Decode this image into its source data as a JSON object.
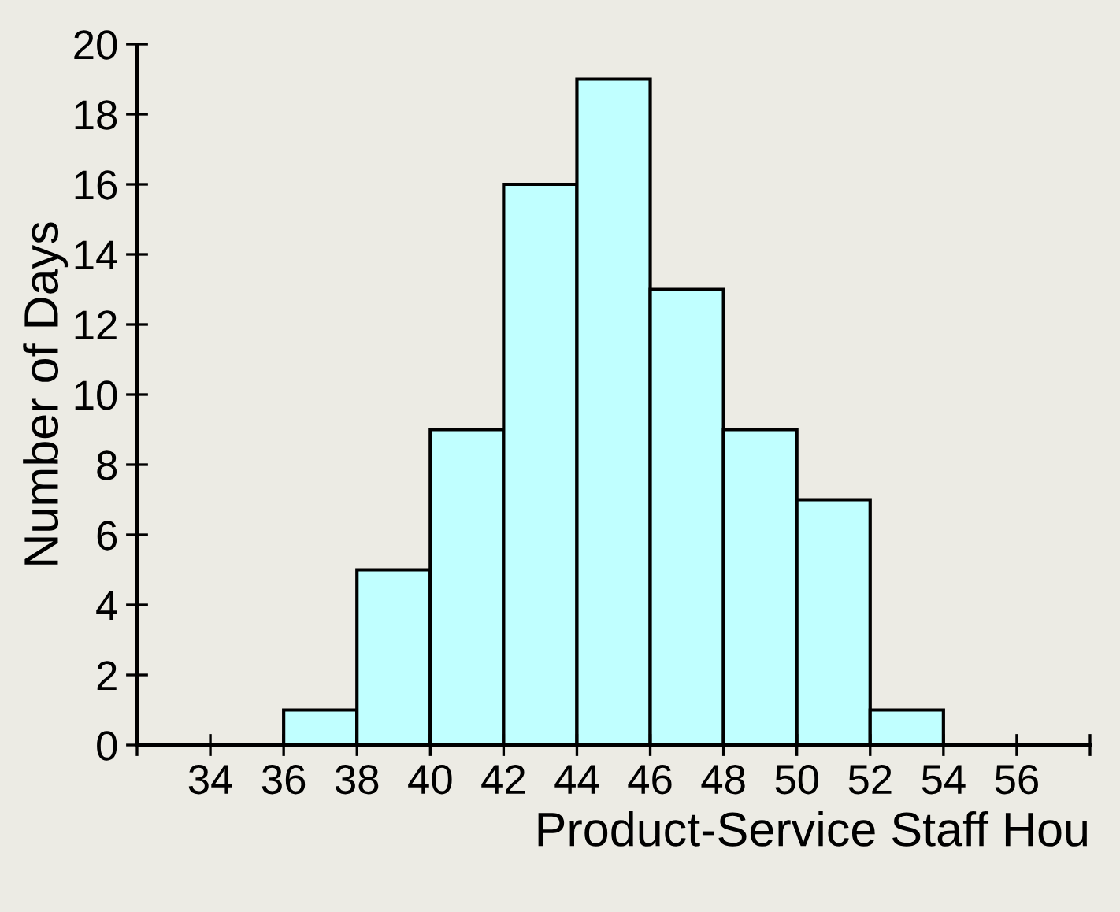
{
  "chart_data": {
    "type": "histogram",
    "xlabel": "Product-Service Staff Hou",
    "ylabel": "Number of Days",
    "bins": [
      32,
      34,
      36,
      38,
      40,
      42,
      44,
      46,
      48,
      50,
      52,
      54,
      56,
      58
    ],
    "values": [
      0,
      0,
      1,
      5,
      9,
      16,
      19,
      13,
      9,
      7,
      1,
      0,
      0
    ],
    "color": "#c0ffff",
    "xlim": [
      32,
      58
    ],
    "xticks": [
      {
        "value": 32,
        "label": null
      },
      34,
      36,
      38,
      40,
      42,
      44,
      46,
      48,
      50,
      52,
      54,
      56,
      {
        "value": 58,
        "label": null
      }
    ],
    "ylim": [
      0,
      20
    ],
    "yticks": [
      0,
      2,
      4,
      6,
      8,
      10,
      12,
      14,
      16,
      18,
      20
    ],
    "grid": false
  }
}
